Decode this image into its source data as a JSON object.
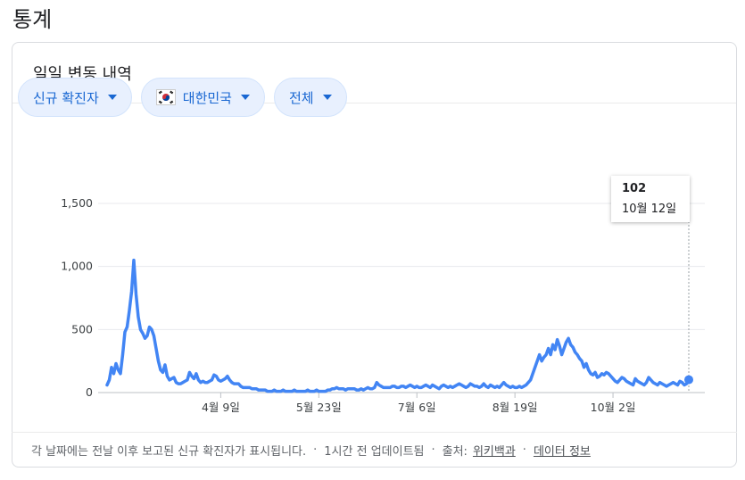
{
  "page": {
    "section_title": "통계"
  },
  "card": {
    "title": "일일 변동 내역"
  },
  "chips": [
    {
      "label": "신규 확진자",
      "icon": "caret-down-icon"
    },
    {
      "label": "대한민국",
      "icon": "caret-down-icon",
      "flag": "south-korea-flag-icon"
    },
    {
      "label": "전체",
      "icon": "caret-down-icon"
    }
  ],
  "tooltip": {
    "value": "102",
    "date": "10월 12일"
  },
  "footer": {
    "note": "각 날짜에는 전날 이후 보고된 신규 확진자가 표시됩니다.",
    "updated": "1시간 전 업데이트됨",
    "source_label": "출처:",
    "source_link": "위키백과",
    "data_link": "데이터 정보"
  },
  "colors": {
    "line": "#4285f4",
    "chip_bg": "#e8f0fe",
    "chip_text": "#1967d2",
    "grid": "#e8eaed"
  },
  "chart_data": {
    "type": "line",
    "title": "",
    "xlabel": "",
    "ylabel": "",
    "ylim": [
      0,
      1500
    ],
    "y_ticks": [
      "0",
      "500",
      "1,000",
      "1,500"
    ],
    "x_ticks": [
      {
        "label": "4월 9일",
        "index": 51
      },
      {
        "label": "5월 23일",
        "index": 95
      },
      {
        "label": "7월 6일",
        "index": 139
      },
      {
        "label": "8월 19일",
        "index": 183
      },
      {
        "label": "10월 2일",
        "index": 227
      }
    ],
    "series": [
      {
        "values": [
          60,
          100,
          200,
          150,
          230,
          180,
          150,
          300,
          480,
          520,
          650,
          800,
          1050,
          780,
          600,
          500,
          470,
          430,
          450,
          520,
          500,
          450,
          350,
          250,
          180,
          160,
          220,
          130,
          100,
          110,
          120,
          80,
          70,
          70,
          80,
          90,
          100,
          160,
          130,
          110,
          150,
          100,
          80,
          90,
          80,
          80,
          90,
          100,
          140,
          130,
          100,
          90,
          100,
          110,
          130,
          100,
          80,
          70,
          70,
          70,
          50,
          40,
          40,
          40,
          40,
          30,
          30,
          30,
          20,
          20,
          20,
          20,
          10,
          10,
          10,
          20,
          10,
          10,
          10,
          20,
          10,
          10,
          10,
          10,
          20,
          10,
          10,
          10,
          10,
          10,
          20,
          10,
          10,
          10,
          20,
          10,
          10,
          10,
          10,
          20,
          20,
          30,
          30,
          40,
          30,
          30,
          30,
          20,
          30,
          30,
          30,
          30,
          20,
          20,
          30,
          20,
          30,
          40,
          30,
          30,
          40,
          80,
          60,
          50,
          40,
          40,
          40,
          40,
          50,
          50,
          40,
          40,
          50,
          50,
          40,
          50,
          60,
          50,
          40,
          50,
          40,
          40,
          50,
          60,
          50,
          40,
          60,
          50,
          40,
          30,
          50,
          60,
          50,
          40,
          50,
          40,
          50,
          60,
          70,
          60,
          50,
          40,
          50,
          70,
          60,
          50,
          50,
          40,
          50,
          70,
          50,
          40,
          60,
          50,
          40,
          50,
          40,
          60,
          80,
          60,
          50,
          40,
          50,
          40,
          40,
          50,
          40,
          50,
          60,
          80,
          100,
          150,
          200,
          250,
          300,
          250,
          280,
          300,
          350,
          300,
          380,
          340,
          420,
          370,
          300,
          350,
          400,
          430,
          380,
          360,
          320,
          300,
          270,
          250,
          200,
          230,
          180,
          150,
          140,
          160,
          120,
          130,
          150,
          140,
          160,
          150,
          130,
          110,
          90,
          80,
          100,
          120,
          110,
          90,
          80,
          70,
          60,
          110,
          90,
          80,
          70,
          60,
          80,
          120,
          100,
          80,
          70,
          60,
          80,
          70,
          60,
          50,
          60,
          70,
          80,
          70,
          60,
          90,
          80,
          60,
          70,
          102
        ]
      }
    ]
  }
}
